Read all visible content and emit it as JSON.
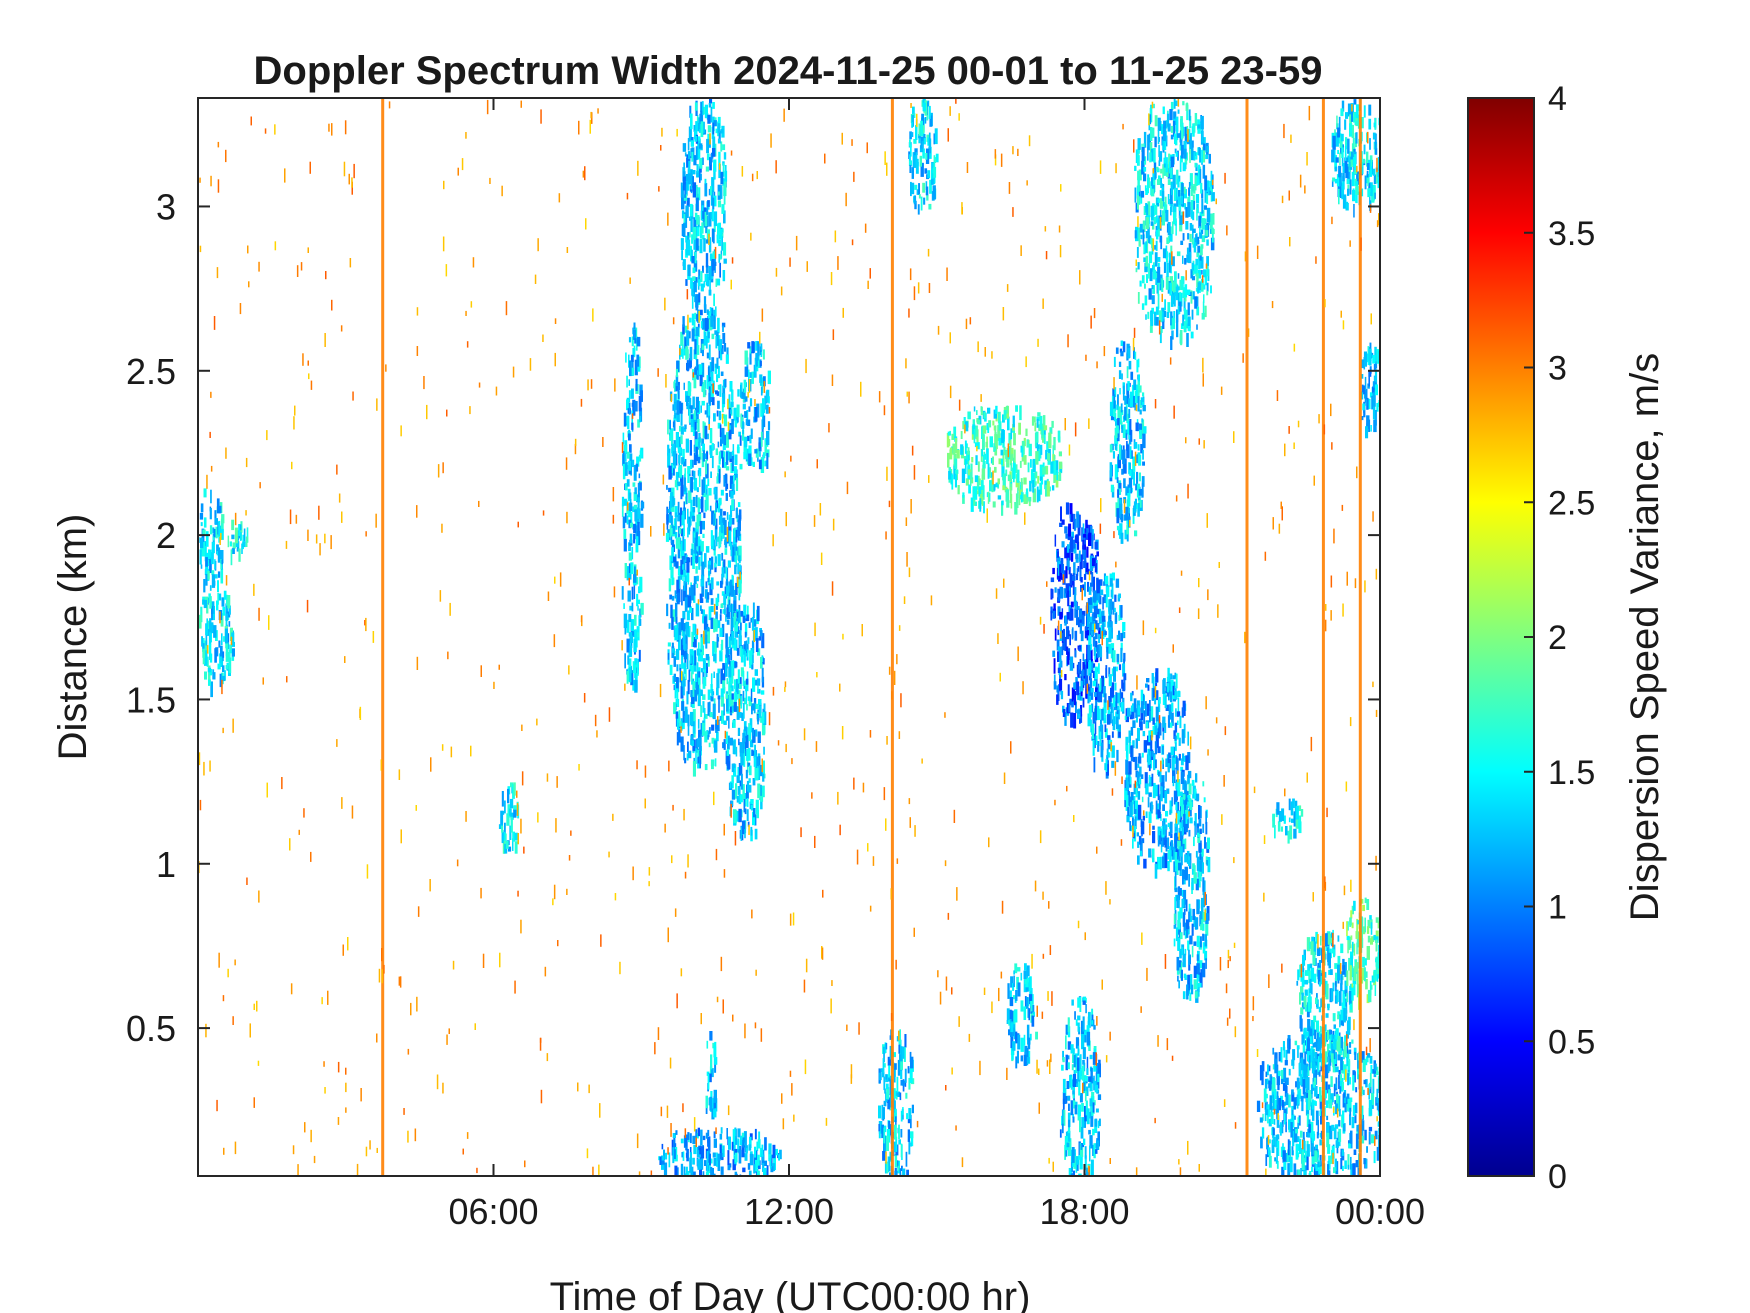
{
  "chart_data": {
    "type": "heatmap",
    "title": "Doppler Spectrum Width 2024-11-25 00-01 to 11-25 23-59",
    "xlabel": "Time of Day (UTC00:00 hr)",
    "ylabel": "Distance (km)",
    "xlim": [
      0,
      24
    ],
    "ylim": [
      0.05,
      3.33
    ],
    "x_ticks": [
      {
        "value": 6,
        "label": "06:00"
      },
      {
        "value": 12,
        "label": "12:00"
      },
      {
        "value": 18,
        "label": "18:00"
      },
      {
        "value": 24,
        "label": "00:00"
      }
    ],
    "y_ticks": [
      {
        "value": 0.5,
        "label": "0.5"
      },
      {
        "value": 1,
        "label": "1"
      },
      {
        "value": 1.5,
        "label": "1.5"
      },
      {
        "value": 2,
        "label": "2"
      },
      {
        "value": 2.5,
        "label": "2.5"
      },
      {
        "value": 3,
        "label": "3"
      }
    ],
    "colorbar": {
      "label": "Dispersion Speed Variance, m/s",
      "colormap": "jet",
      "range": [
        0,
        4
      ],
      "ticks": [
        {
          "value": 0,
          "label": "0"
        },
        {
          "value": 0.5,
          "label": "0.5"
        },
        {
          "value": 1,
          "label": "1"
        },
        {
          "value": 1.5,
          "label": "1.5"
        },
        {
          "value": 2,
          "label": "2"
        },
        {
          "value": 2.5,
          "label": "2.5"
        },
        {
          "value": 3,
          "label": "3"
        },
        {
          "value": 3.5,
          "label": "3.5"
        },
        {
          "value": 4,
          "label": "4"
        }
      ]
    },
    "grid": false,
    "vertical_lines": [
      {
        "x": 3.75,
        "value": 3.0
      },
      {
        "x": 14.1,
        "value": 3.0
      },
      {
        "x": 21.3,
        "value": 3.0
      },
      {
        "x": 22.85,
        "value": 3.0
      },
      {
        "x": 23.6,
        "value": 3.0
      }
    ],
    "regions": [
      {
        "x": [
          0.0,
          0.7
        ],
        "y": [
          1.55,
          1.85
        ],
        "value": 1.4
      },
      {
        "x": [
          0.0,
          0.5
        ],
        "y": [
          1.85,
          2.15
        ],
        "value": 1.4
      },
      {
        "x": [
          0.6,
          1.0
        ],
        "y": [
          1.95,
          2.05
        ],
        "value": 1.5
      },
      {
        "x": [
          6.1,
          6.5
        ],
        "y": [
          1.05,
          1.25
        ],
        "value": 1.4
      },
      {
        "x": [
          8.6,
          9.0
        ],
        "y": [
          1.55,
          2.65
        ],
        "value": 1.3
      },
      {
        "x": [
          9.5,
          11.0
        ],
        "y": [
          1.3,
          2.7
        ],
        "value": 1.3
      },
      {
        "x": [
          9.8,
          10.7
        ],
        "y": [
          2.7,
          3.33
        ],
        "value": 1.3
      },
      {
        "x": [
          10.7,
          11.5
        ],
        "y": [
          1.1,
          1.8
        ],
        "value": 1.3
      },
      {
        "x": [
          11.0,
          11.6
        ],
        "y": [
          2.2,
          2.6
        ],
        "value": 1.3
      },
      {
        "x": [
          9.3,
          11.8
        ],
        "y": [
          0.05,
          0.2
        ],
        "value": 1.2
      },
      {
        "x": [
          10.3,
          10.5
        ],
        "y": [
          0.2,
          0.5
        ],
        "value": 1.3
      },
      {
        "x": [
          13.8,
          14.5
        ],
        "y": [
          0.05,
          0.5
        ],
        "value": 1.3
      },
      {
        "x": [
          14.4,
          15.0
        ],
        "y": [
          3.0,
          3.33
        ],
        "value": 1.4
      },
      {
        "x": [
          15.2,
          17.5
        ],
        "y": [
          2.1,
          2.4
        ],
        "value": 1.7
      },
      {
        "x": [
          17.3,
          18.3
        ],
        "y": [
          1.45,
          2.1
        ],
        "value": 0.9
      },
      {
        "x": [
          18.0,
          18.8
        ],
        "y": [
          1.3,
          1.9
        ],
        "value": 1.2
      },
      {
        "x": [
          18.8,
          20.1
        ],
        "y": [
          1.0,
          1.6
        ],
        "value": 1.2
      },
      {
        "x": [
          19.8,
          20.5
        ],
        "y": [
          0.6,
          1.3
        ],
        "value": 1.3
      },
      {
        "x": [
          19.0,
          20.6
        ],
        "y": [
          2.6,
          3.33
        ],
        "value": 1.4
      },
      {
        "x": [
          18.5,
          19.2
        ],
        "y": [
          2.0,
          2.6
        ],
        "value": 1.3
      },
      {
        "x": [
          16.4,
          17.0
        ],
        "y": [
          0.4,
          0.7
        ],
        "value": 1.3
      },
      {
        "x": [
          17.5,
          18.3
        ],
        "y": [
          0.05,
          0.6
        ],
        "value": 1.3
      },
      {
        "x": [
          21.8,
          22.4
        ],
        "y": [
          1.1,
          1.2
        ],
        "value": 1.5
      },
      {
        "x": [
          21.5,
          24.0
        ],
        "y": [
          0.05,
          0.5
        ],
        "value": 1.3
      },
      {
        "x": [
          22.3,
          23.4
        ],
        "y": [
          0.4,
          0.8
        ],
        "value": 1.4
      },
      {
        "x": [
          23.3,
          24.0
        ],
        "y": [
          0.6,
          0.9
        ],
        "value": 1.8
      },
      {
        "x": [
          23.0,
          24.0
        ],
        "y": [
          3.0,
          3.33
        ],
        "value": 1.4
      },
      {
        "x": [
          23.6,
          24.0
        ],
        "y": [
          2.3,
          2.6
        ],
        "value": 1.3
      }
    ]
  }
}
